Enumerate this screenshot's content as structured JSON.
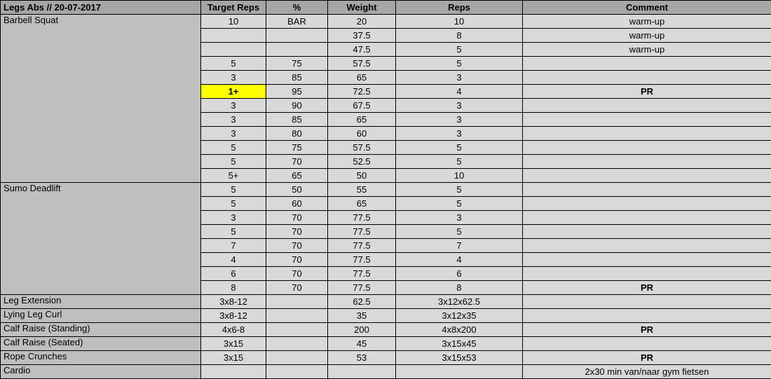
{
  "header": {
    "title": "Legs Abs // 20-07-2017",
    "columns": [
      "Target Reps",
      "%",
      "Weight",
      "Reps",
      "Comment"
    ]
  },
  "colors": {
    "header_bg": "#a6a6a6",
    "exercise_bg": "#bfbfbf",
    "cell_bg": "#d9d9d9",
    "highlight_bg": "#ffff00",
    "border": "#000000",
    "text": "#000000"
  },
  "rows": [
    {
      "exercise": "Barbell Squat",
      "exercise_rowspan": 12,
      "target_reps": "10",
      "percent": "BAR",
      "weight": "20",
      "reps": "10",
      "comment": "warm-up"
    },
    {
      "target_reps": "",
      "percent": "",
      "weight": "37.5",
      "reps": "8",
      "comment": "warm-up"
    },
    {
      "target_reps": "",
      "percent": "",
      "weight": "47.5",
      "reps": "5",
      "comment": "warm-up"
    },
    {
      "target_reps": "5",
      "percent": "75",
      "weight": "57.5",
      "reps": "5",
      "comment": ""
    },
    {
      "target_reps": "3",
      "percent": "85",
      "weight": "65",
      "reps": "3",
      "comment": ""
    },
    {
      "target_reps": "1+",
      "percent": "95",
      "weight": "72.5",
      "reps": "4",
      "comment": "PR",
      "target_highlight": true,
      "comment_bold": true
    },
    {
      "target_reps": "3",
      "percent": "90",
      "weight": "67.5",
      "reps": "3",
      "comment": ""
    },
    {
      "target_reps": "3",
      "percent": "85",
      "weight": "65",
      "reps": "3",
      "comment": ""
    },
    {
      "target_reps": "3",
      "percent": "80",
      "weight": "60",
      "reps": "3",
      "comment": ""
    },
    {
      "target_reps": "5",
      "percent": "75",
      "weight": "57.5",
      "reps": "5",
      "comment": ""
    },
    {
      "target_reps": "5",
      "percent": "70",
      "weight": "52.5",
      "reps": "5",
      "comment": ""
    },
    {
      "target_reps": "5+",
      "percent": "65",
      "weight": "50",
      "reps": "10",
      "comment": ""
    },
    {
      "exercise": "Sumo Deadlift",
      "exercise_rowspan": 8,
      "target_reps": "5",
      "percent": "50",
      "weight": "55",
      "reps": "5",
      "comment": ""
    },
    {
      "target_reps": "5",
      "percent": "60",
      "weight": "65",
      "reps": "5",
      "comment": ""
    },
    {
      "target_reps": "3",
      "percent": "70",
      "weight": "77.5",
      "reps": "3",
      "comment": ""
    },
    {
      "target_reps": "5",
      "percent": "70",
      "weight": "77.5",
      "reps": "5",
      "comment": ""
    },
    {
      "target_reps": "7",
      "percent": "70",
      "weight": "77.5",
      "reps": "7",
      "comment": ""
    },
    {
      "target_reps": "4",
      "percent": "70",
      "weight": "77.5",
      "reps": "4",
      "comment": ""
    },
    {
      "target_reps": "6",
      "percent": "70",
      "weight": "77.5",
      "reps": "6",
      "comment": ""
    },
    {
      "target_reps": "8",
      "percent": "70",
      "weight": "77.5",
      "reps": "8",
      "comment": "PR",
      "comment_bold": true
    },
    {
      "exercise": "Leg Extension",
      "exercise_rowspan": 1,
      "target_reps": "3x8-12",
      "percent": "",
      "weight": "62.5",
      "reps": "3x12x62.5",
      "comment": ""
    },
    {
      "exercise": "Lying Leg Curl",
      "exercise_rowspan": 1,
      "target_reps": "3x8-12",
      "percent": "",
      "weight": "35",
      "reps": "3x12x35",
      "comment": ""
    },
    {
      "exercise": "Calf Raise (Standing)",
      "exercise_rowspan": 1,
      "target_reps": "4x6-8",
      "percent": "",
      "weight": "200",
      "reps": "4x8x200",
      "comment": "PR",
      "comment_bold": true
    },
    {
      "exercise": "Calf Raise (Seated)",
      "exercise_rowspan": 1,
      "target_reps": "3x15",
      "percent": "",
      "weight": "45",
      "reps": "3x15x45",
      "comment": ""
    },
    {
      "exercise": "Rope Crunches",
      "exercise_rowspan": 1,
      "target_reps": "3x15",
      "percent": "",
      "weight": "53",
      "reps": "3x15x53",
      "comment": "PR",
      "comment_bold": true
    },
    {
      "exercise": "Cardio",
      "exercise_rowspan": 1,
      "target_reps": "",
      "percent": "",
      "weight": "",
      "reps": "",
      "comment": "2x30 min van/naar gym fietsen"
    }
  ]
}
